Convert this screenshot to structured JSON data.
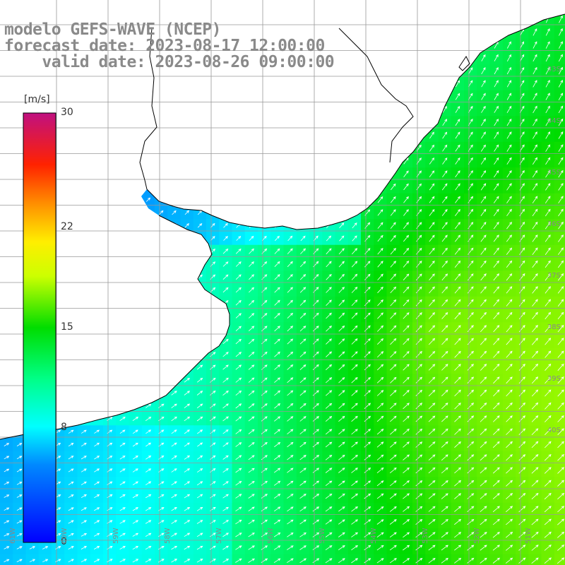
{
  "title": {
    "line1": "modelo GEFS-WAVE (NCEP)",
    "line2": "forecast date: 2023-08-17 12:00:00",
    "line3": "    valid date: 2023-08-26 09:00:00"
  },
  "colorbar": {
    "unit": "[m/s]",
    "ticks": [
      {
        "value": 30,
        "label": "30"
      },
      {
        "value": 22,
        "label": "22"
      },
      {
        "value": 15,
        "label": "15"
      },
      {
        "value": 8,
        "label": "8"
      },
      {
        "value": 0,
        "label": "0"
      }
    ],
    "range": [
      0,
      30
    ],
    "colors": [
      "#0000ff",
      "#00aaff",
      "#00ffff",
      "#00ff66",
      "#00dd00",
      "#aaff00",
      "#ffff00",
      "#ffaa00",
      "#ff5500",
      "#ff0000",
      "#dd0044",
      "#c01090"
    ]
  },
  "map": {
    "variable": "wind speed with direction arrows",
    "lat_labels": [
      "33S",
      "34S",
      "35S",
      "36S",
      "37S",
      "38S",
      "39S",
      "40S"
    ],
    "lon_labels": [
      "61W",
      "60W",
      "59W",
      "58W",
      "57W",
      "56W",
      "55W",
      "54W",
      "53W",
      "52W",
      "51W"
    ],
    "land_color": "#ffffff",
    "grid_color": "#999999",
    "coast_color": "#000000",
    "arrow_color": "#ffffff"
  }
}
